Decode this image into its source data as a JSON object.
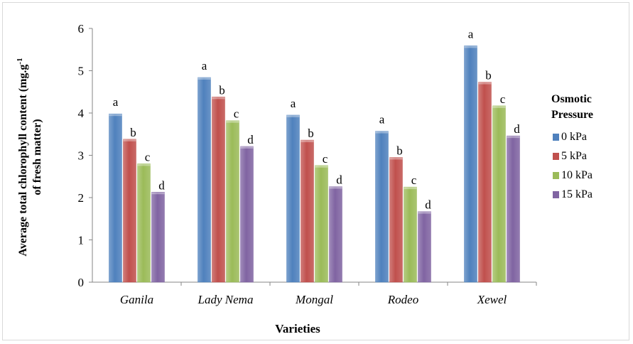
{
  "chart_data": {
    "type": "bar",
    "xlabel": "Varieties",
    "ylabel_line1": "Average total chlorophyll content (mg.g",
    "ylabel_sup": "-1",
    "ylabel_line2": "of fresh matter)",
    "ylim": [
      0,
      6
    ],
    "yticks": [
      "0",
      "1",
      "2",
      "3",
      "4",
      "5",
      "6"
    ],
    "grid": false,
    "legend_position": "right",
    "legend_title": "Osmotic Pressure",
    "categories": [
      "Ganila",
      "Lady Nema",
      "Mongal",
      "Rodeo",
      "Xewel"
    ],
    "series": [
      {
        "name": "0 kPa",
        "color": "#4f81bd",
        "values": [
          3.98,
          4.84,
          3.95,
          3.57,
          5.59
        ]
      },
      {
        "name": "5 kPa",
        "color": "#c0504d",
        "values": [
          3.38,
          4.38,
          3.36,
          2.95,
          4.73
        ]
      },
      {
        "name": "10 kPa",
        "color": "#9bbb59",
        "values": [
          2.8,
          3.82,
          2.76,
          2.25,
          4.17
        ]
      },
      {
        "name": "15 kPa",
        "color": "#8064a2",
        "values": [
          2.13,
          3.21,
          2.26,
          1.67,
          3.46
        ]
      }
    ],
    "annotations": [
      "a",
      "b",
      "c",
      "d"
    ]
  }
}
